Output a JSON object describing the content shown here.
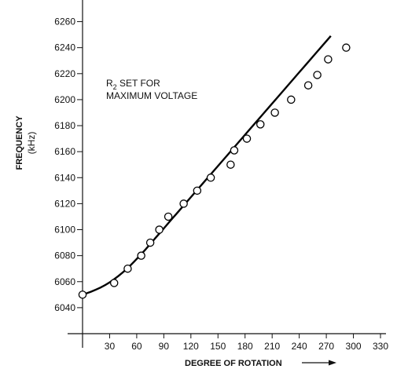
{
  "chart_data": {
    "type": "scatter",
    "xlabel": "DEGREE OF ROTATION",
    "ylabel": "FREQUENCY",
    "yunit": "(kHz)",
    "annotation_line1": "R",
    "annotation_sub": "2",
    "annotation_line1_rest": " SET FOR",
    "annotation_line2": "MAXIMUM VOLTAGE",
    "xlim": [
      0,
      330
    ],
    "ylim": [
      6020,
      6270
    ],
    "x_ticks": [
      30,
      60,
      90,
      120,
      150,
      180,
      210,
      240,
      270,
      300,
      330
    ],
    "x_tick_labels": [
      "30",
      "60",
      "90",
      "120",
      "150",
      "180",
      "210",
      "240",
      "270",
      "300",
      "330"
    ],
    "y_ticks": [
      6040,
      6060,
      6080,
      6100,
      6120,
      6140,
      6160,
      6180,
      6200,
      6220,
      6240,
      6260
    ],
    "y_tick_labels": [
      "6040",
      "6060",
      "6080",
      "6100",
      "6120",
      "6140",
      "6160",
      "6180",
      "6200",
      "6220",
      "6240",
      "6260"
    ],
    "grid": false,
    "series": [
      {
        "points": [
          {
            "x": 0,
            "y": 6050
          },
          {
            "x": 35,
            "y": 6059
          },
          {
            "x": 50,
            "y": 6070
          },
          {
            "x": 65,
            "y": 6080
          },
          {
            "x": 75,
            "y": 6090
          },
          {
            "x": 85,
            "y": 6100
          },
          {
            "x": 95,
            "y": 6110
          },
          {
            "x": 112,
            "y": 6120
          },
          {
            "x": 127,
            "y": 6130
          },
          {
            "x": 142,
            "y": 6140
          },
          {
            "x": 164,
            "y": 6150
          },
          {
            "x": 168,
            "y": 6161
          },
          {
            "x": 182,
            "y": 6170
          },
          {
            "x": 197,
            "y": 6181
          },
          {
            "x": 213,
            "y": 6190
          },
          {
            "x": 231,
            "y": 6200
          },
          {
            "x": 250,
            "y": 6211
          },
          {
            "x": 260,
            "y": 6219
          },
          {
            "x": 272,
            "y": 6231
          },
          {
            "x": 292,
            "y": 6240
          }
        ]
      },
      {
        "type": "line",
        "points": [
          {
            "x": 0,
            "y": 6050
          },
          {
            "x": 10,
            "y": 6052.5
          },
          {
            "x": 20,
            "y": 6055.5
          },
          {
            "x": 30,
            "y": 6059.5
          },
          {
            "x": 40,
            "y": 6064.5
          },
          {
            "x": 50,
            "y": 6070.5
          },
          {
            "x": 60,
            "y": 6077.5
          },
          {
            "x": 70,
            "y": 6085
          },
          {
            "x": 80,
            "y": 6093
          },
          {
            "x": 90,
            "y": 6101
          },
          {
            "x": 100,
            "y": 6109
          },
          {
            "x": 110,
            "y": 6117
          },
          {
            "x": 120,
            "y": 6125
          },
          {
            "x": 140,
            "y": 6141
          },
          {
            "x": 160,
            "y": 6157
          },
          {
            "x": 180,
            "y": 6173
          },
          {
            "x": 200,
            "y": 6189
          },
          {
            "x": 220,
            "y": 6205
          },
          {
            "x": 240,
            "y": 6221
          },
          {
            "x": 260,
            "y": 6237
          },
          {
            "x": 275,
            "y": 6249
          }
        ]
      }
    ]
  }
}
